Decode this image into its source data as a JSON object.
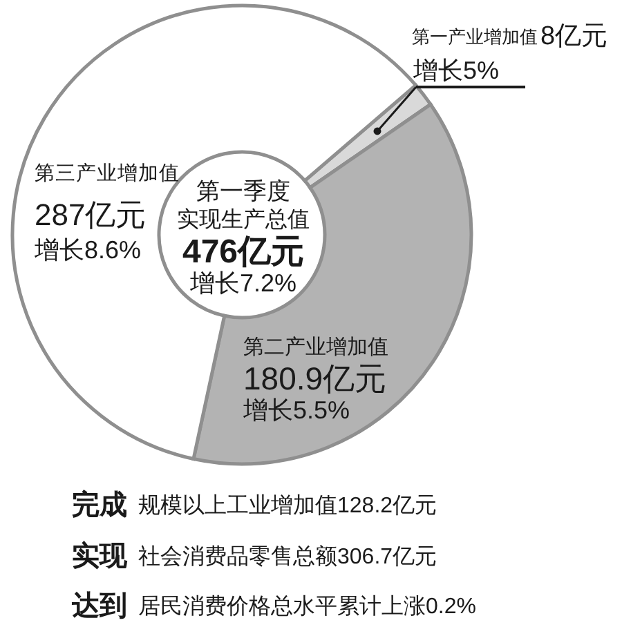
{
  "chart_data": {
    "type": "donut",
    "categories": [
      "第一产业增加值",
      "第二产业增加值",
      "第三产业增加值"
    ],
    "values": [
      8,
      180.9,
      287
    ],
    "colors": [
      "#d9d9d9",
      "#b3b3b3",
      "#ffffff"
    ],
    "value_labels": [
      "8亿元",
      "180.9亿元",
      "287亿元"
    ],
    "annotations": [
      "增长5%",
      "增长5.5%",
      "增长8.6%",
      "第一季度",
      "实现生产总值",
      "476亿元",
      "增长7.2%",
      "完成",
      "规模以上工业增加值128.2亿元",
      "实现",
      "社会消费品零售总额306.7亿元",
      "达到",
      "居民消费价格总水平累计上涨0.2%"
    ]
  }
}
